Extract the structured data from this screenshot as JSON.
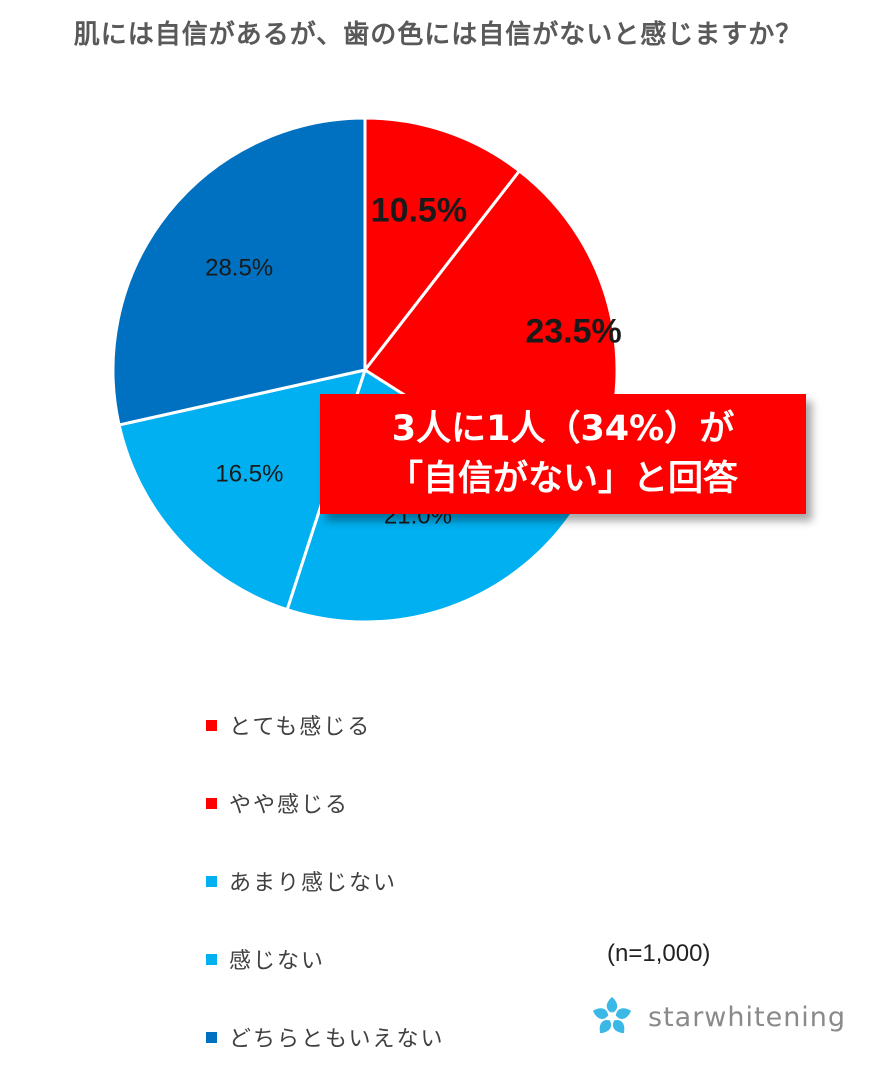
{
  "title": "肌には自信があるが、歯の色には自信がないと感じますか？",
  "callout": {
    "line1": "3人に1人（34%）が",
    "line2": "「自信がない」と回答"
  },
  "sample_size": "(n=1,000)",
  "brand": {
    "name": "starwhitening",
    "icon": "star-flower-logo-icon"
  },
  "colors": {
    "red": "#ff0000",
    "light_blue": "#00b0f0",
    "dark_blue": "#0070c0",
    "callout_bg": "#ff0000",
    "title": "#595959"
  },
  "chart_data": {
    "type": "pie",
    "title": "肌には自信があるが、歯の色には自信がないと感じますか？",
    "start": "12 o'clock, clockwise",
    "legend_placement": "bottom",
    "slices": [
      {
        "label": "とても感じる",
        "value": 10.5,
        "display": "10.5%",
        "color": "#ff0000",
        "label_style": "bold"
      },
      {
        "label": "やや感じる",
        "value": 23.5,
        "display": "23.5%",
        "color": "#ff0000",
        "label_style": "bold"
      },
      {
        "label": "あまり感じない",
        "value": 21.0,
        "display": "21.0%",
        "color": "#00b0f0",
        "label_style": "normal"
      },
      {
        "label": "感じない",
        "value": 16.5,
        "display": "16.5%",
        "color": "#00b0f0",
        "label_style": "normal"
      },
      {
        "label": "どちらともいえない",
        "value": 28.5,
        "display": "28.5%",
        "color": "#0070c0",
        "label_style": "normal"
      }
    ]
  }
}
